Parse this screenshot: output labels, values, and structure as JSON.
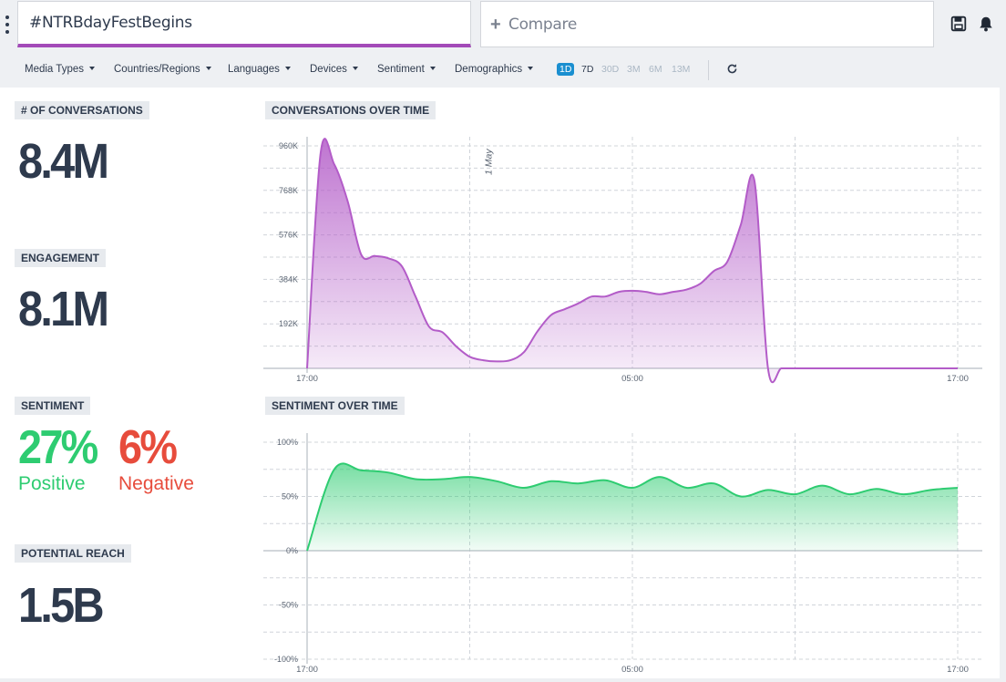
{
  "search": {
    "query": "#NTRBdayFestBegins",
    "compare_placeholder": "Compare"
  },
  "filters": [
    "Media Types",
    "Countries/Regions",
    "Languages",
    "Devices",
    "Sentiment",
    "Demographics"
  ],
  "ranges": [
    {
      "label": "1D",
      "state": "active"
    },
    {
      "label": "7D",
      "state": "on"
    },
    {
      "label": "30D",
      "state": "off"
    },
    {
      "label": "3M",
      "state": "off"
    },
    {
      "label": "6M",
      "state": "off"
    },
    {
      "label": "13M",
      "state": "off"
    }
  ],
  "metrics": {
    "conversations": {
      "label": "# OF CONVERSATIONS",
      "value": "8.4M"
    },
    "engagement": {
      "label": "ENGAGEMENT",
      "value": "8.1M"
    },
    "sentiment": {
      "label": "SENTIMENT",
      "positive": "27%",
      "positive_label": "Positive",
      "negative": "6%",
      "negative_label": "Negative"
    },
    "reach": {
      "label": "POTENTIAL REACH",
      "value": "1.5B"
    }
  },
  "colors": {
    "accent": "#a34ab8",
    "conversations_line": "#b35cc8",
    "sentiment_line": "#2ecc71",
    "positive": "#2ecc71",
    "negative": "#e74c3c",
    "range_active": "#1a8fd0"
  },
  "icons": {
    "menu": "kebab-icon",
    "save": "save-icon",
    "alerts": "bell-icon",
    "compare": "plus-icon",
    "refresh": "refresh-icon"
  },
  "chart_data": [
    {
      "type": "area",
      "title": "CONVERSATIONS OVER TIME",
      "x_tick_labels": [
        "17:00",
        "05:00",
        "17:00"
      ],
      "date_marker": "1 May",
      "y_ticks": [
        192000,
        384000,
        576000,
        768000,
        960000
      ],
      "y_tick_labels": [
        "192K",
        "384K",
        "576K",
        "768K",
        "960K"
      ],
      "ylim": [
        0,
        960000
      ],
      "x_hours": [
        0,
        0.5,
        1,
        1.5,
        2,
        2.5,
        3,
        3.5,
        4,
        4.5,
        5,
        5.5,
        6,
        6.5,
        7,
        7.5,
        8,
        8.5,
        9,
        9.5,
        10,
        10.5,
        11,
        11.5,
        12,
        12.5,
        13,
        13.5,
        14,
        14.5,
        15,
        15.5,
        16,
        16.5,
        17,
        17.5,
        18,
        18.5,
        19,
        19.5,
        20,
        20.5,
        21,
        21.5,
        22,
        22.5,
        23,
        23.5,
        24
      ],
      "values": [
        0,
        930000,
        880000,
        720000,
        490000,
        485000,
        475000,
        440000,
        310000,
        180000,
        155000,
        95000,
        50000,
        35000,
        30000,
        35000,
        70000,
        160000,
        230000,
        255000,
        280000,
        310000,
        310000,
        330000,
        335000,
        330000,
        320000,
        330000,
        340000,
        365000,
        420000,
        460000,
        620000,
        810000,
        0,
        0,
        0,
        0,
        0,
        0,
        0,
        0,
        0,
        0,
        0,
        0,
        0,
        0,
        0
      ],
      "grid": true
    },
    {
      "type": "area",
      "title": "SENTIMENT OVER TIME",
      "x_tick_labels": [
        "17:00",
        "05:00",
        "17:00"
      ],
      "y_ticks": [
        -100,
        -50,
        0,
        50,
        100
      ],
      "y_tick_labels": [
        "-100%",
        "-50%",
        "0%",
        "50%",
        "100%"
      ],
      "ylim": [
        -100,
        100
      ],
      "x_hours": [
        0,
        1,
        2,
        3,
        4,
        5,
        6,
        7,
        8,
        9,
        10,
        11,
        12,
        13,
        14,
        15,
        16,
        17,
        18,
        19,
        20,
        21,
        22,
        23,
        24
      ],
      "values": [
        0,
        75,
        74,
        72,
        66,
        66,
        68,
        64,
        58,
        64,
        62,
        65,
        58,
        68,
        58,
        62,
        50,
        56,
        52,
        60,
        52,
        57,
        52,
        56,
        58
      ],
      "grid": true
    }
  ]
}
